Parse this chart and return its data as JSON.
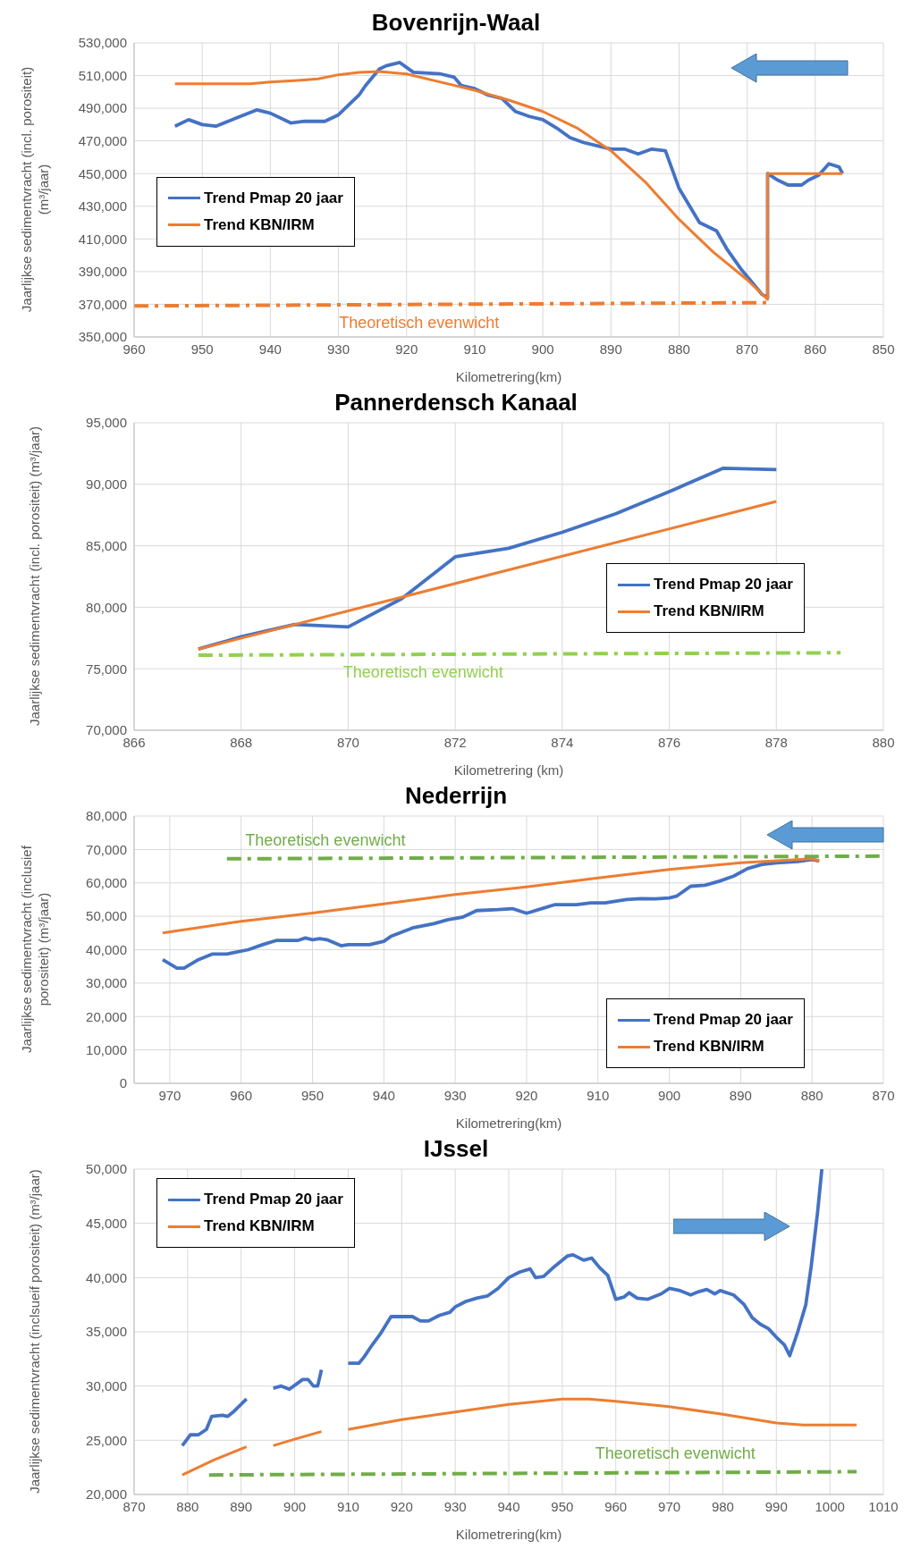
{
  "chart_data": [
    {
      "type": "line",
      "title": "Bovenrijn-Waal",
      "xlabel": "Kilometrering(km)",
      "ylabel": "Jaarlijkse sedimentvracht (incl. porositeit) (m³/jaar)",
      "xlim": [
        960,
        850
      ],
      "xticks": [
        960,
        950,
        940,
        930,
        920,
        910,
        900,
        890,
        880,
        870,
        860,
        850
      ],
      "ylim": [
        350000,
        530000
      ],
      "yticks": [
        {
          "value": 350000,
          "label": "350,000"
        },
        {
          "value": 370000,
          "label": "370,000"
        },
        {
          "value": 390000,
          "label": "390,000"
        },
        {
          "value": 410000,
          "label": "410,000"
        },
        {
          "value": 430000,
          "label": "430,000"
        },
        {
          "value": 450000,
          "label": "450,000"
        },
        {
          "value": 470000,
          "label": "470,000"
        },
        {
          "value": 490000,
          "label": "490,000"
        },
        {
          "value": 510000,
          "label": "510,000"
        },
        {
          "value": 530000,
          "label": "530,000"
        }
      ],
      "grid": true,
      "legend": "left",
      "series": [
        {
          "name": "Trend Pmap 20 jaar",
          "color": "#4472c4",
          "x": [
            954,
            952,
            950,
            948,
            945,
            942,
            940,
            937,
            935,
            932,
            930,
            927,
            926,
            924,
            923,
            921,
            919,
            915,
            913,
            912,
            910,
            908,
            906,
            904,
            902,
            900,
            898,
            896,
            894,
            892,
            890,
            888,
            886,
            884,
            882,
            880,
            877,
            874.5,
            873,
            870.8,
            869,
            867.8,
            867,
            867,
            865.5,
            864,
            862,
            861,
            859.5,
            858,
            856.5,
            856
          ],
          "values": [
            479000,
            483000,
            480000,
            479000,
            484000,
            489000,
            487000,
            481000,
            482000,
            482000,
            486000,
            498000,
            504000,
            514000,
            516000,
            518000,
            512000,
            511000,
            509000,
            504000,
            502000,
            498000,
            496000,
            488000,
            485000,
            483000,
            478000,
            472000,
            469000,
            467000,
            465000,
            465000,
            462000,
            465000,
            464000,
            441000,
            420000,
            415000,
            404000,
            391000,
            382000,
            376000,
            374000,
            450000,
            446000,
            443000,
            443000,
            446000,
            449000,
            456000,
            454000,
            450000
          ]
        },
        {
          "name": "Trend KBN/IRM",
          "color": "#ed7d31",
          "x": [
            954,
            943,
            940,
            936,
            933,
            930,
            927,
            924,
            920,
            915,
            910,
            905,
            900,
            895,
            890,
            885,
            880,
            875,
            870,
            867,
            867,
            856
          ],
          "values": [
            505000,
            505000,
            506000,
            507000,
            508000,
            510500,
            512000,
            512500,
            511000,
            506000,
            501000,
            495000,
            488000,
            478000,
            464000,
            445000,
            422000,
            402000,
            385000,
            373000,
            450000,
            450000
          ]
        },
        {
          "color": "#ed7d31",
          "line_style": "dashed",
          "x": [
            960,
            867
          ],
          "values": [
            369000,
            371000
          ]
        }
      ],
      "annotations": [
        "Theoretisch evenwicht"
      ]
    },
    {
      "type": "line",
      "title": "Pannerdensch Kanaal",
      "xlabel": "Kilometrering (km)",
      "ylabel": "Jaarlijkse sedimentvracht (incl. porositeit)  (m³/jaar)",
      "xlim": [
        866,
        880
      ],
      "xticks": [
        866,
        868,
        870,
        872,
        874,
        876,
        878,
        880
      ],
      "ylim": [
        70000,
        95000
      ],
      "yticks": [
        {
          "value": 70000,
          "label": "70,000"
        },
        {
          "value": 75000,
          "label": "75,000"
        },
        {
          "value": 80000,
          "label": "80,000"
        },
        {
          "value": 85000,
          "label": "85,000"
        },
        {
          "value": 90000,
          "label": "90,000"
        },
        {
          "value": 95000,
          "label": "95,000"
        }
      ],
      "grid": true,
      "legend": "right",
      "series": [
        {
          "name": "Trend Pmap 20 jaar",
          "color": "#4472c4",
          "x": [
            867.2,
            868,
            869,
            870,
            871,
            872,
            873,
            874,
            875,
            876,
            877,
            878
          ],
          "values": [
            76600,
            77600,
            78600,
            78400,
            80700,
            84100,
            84800,
            86100,
            87600,
            89400,
            91300,
            91200
          ]
        },
        {
          "name": "Trend KBN/IRM",
          "color": "#ed7d31",
          "x": [
            867.2,
            878
          ],
          "values": [
            76600,
            88600
          ]
        },
        {
          "color": "#92d050",
          "line_style": "dashed",
          "x": [
            867.2,
            879.2
          ],
          "values": [
            76100,
            76300
          ]
        }
      ],
      "annotations": [
        "Theoretisch evenwicht"
      ]
    },
    {
      "type": "line",
      "title": "Nederrijn",
      "xlabel": "Kilometrering(km)",
      "ylabel": "Jaarlijkse sedimentvracht (inclusief porositeit) (m³/jaar)",
      "xlim": [
        975,
        870
      ],
      "xticks": [
        970,
        960,
        950,
        940,
        930,
        920,
        910,
        900,
        890,
        880,
        870
      ],
      "ylim": [
        0,
        80000
      ],
      "yticks": [
        0,
        {
          "value": 10000,
          "label": "10,000"
        },
        {
          "value": 20000,
          "label": "20,000"
        },
        {
          "value": 30000,
          "label": "30,000"
        },
        {
          "value": 40000,
          "label": "40,000"
        },
        {
          "value": 50000,
          "label": "50,000"
        },
        {
          "value": 60000,
          "label": "60,000"
        },
        {
          "value": 70000,
          "label": "70,000"
        },
        {
          "value": 80000,
          "label": "80,000"
        }
      ],
      "grid": true,
      "legend": "bottom right",
      "series": [
        {
          "name": "Trend Pmap 20 jaar",
          "color": "#4472c4",
          "x": [
            971,
            969,
            968,
            966,
            964,
            962,
            959,
            957,
            955,
            952,
            951,
            950,
            949,
            948,
            946,
            945,
            942,
            940,
            939,
            936,
            933,
            931,
            929,
            927,
            924,
            922,
            920,
            918,
            916,
            913,
            911,
            909,
            906,
            904,
            902,
            900,
            899,
            897,
            895,
            893,
            891,
            889,
            887,
            885,
            882,
            880,
            879
          ],
          "values": [
            37000,
            34500,
            34500,
            37000,
            38700,
            38700,
            40000,
            41500,
            42800,
            42800,
            43500,
            43000,
            43300,
            43000,
            41200,
            41500,
            41500,
            42500,
            44000,
            46500,
            47800,
            49000,
            49700,
            51700,
            52000,
            52300,
            50900,
            52200,
            53500,
            53500,
            54000,
            54000,
            55000,
            55300,
            55200,
            55500,
            56000,
            59000,
            59300,
            60500,
            62000,
            64300,
            65500,
            66000,
            66400,
            67000,
            66500
          ]
        },
        {
          "name": "Trend KBN/IRM",
          "color": "#ed7d31",
          "x": [
            971,
            960,
            950,
            940,
            930,
            920,
            910,
            900,
            890,
            880,
            879
          ],
          "values": [
            45000,
            48500,
            51000,
            53700,
            56500,
            58800,
            61500,
            64000,
            66000,
            67200,
            66500
          ]
        },
        {
          "color": "#70ad47",
          "line_style": "dashed",
          "x": [
            962,
            870
          ],
          "values": [
            67200,
            68000
          ]
        }
      ],
      "annotations": [
        "Theoretisch evenwicht"
      ]
    },
    {
      "type": "line",
      "title": "IJssel",
      "xlabel": "Kilometrering(km)",
      "ylabel": "Jaarlijkse sedimentvracht (inclsueif porositeit) (m³/jaar)",
      "xlim": [
        870,
        1010
      ],
      "xticks": [
        870,
        880,
        890,
        900,
        910,
        920,
        930,
        940,
        950,
        960,
        970,
        980,
        990,
        1000,
        1010
      ],
      "ylim": [
        20000,
        50000
      ],
      "yticks": [
        {
          "value": 20000,
          "label": "20,000"
        },
        {
          "value": 25000,
          "label": "25,000"
        },
        {
          "value": 30000,
          "label": "30,000"
        },
        {
          "value": 35000,
          "label": "35,000"
        },
        {
          "value": 40000,
          "label": "40,000"
        },
        {
          "value": 45000,
          "label": "45,000"
        },
        {
          "value": 50000,
          "label": "50,000"
        }
      ],
      "grid": true,
      "legend": "top left",
      "series": [
        {
          "name": "Trend Pmap 20 jaar",
          "color": "#4472c4",
          "x": [
            879,
            880.5,
            882,
            883.5,
            884.5,
            886.5,
            887.5,
            888.5,
            891,
            893,
            896,
            897.5,
            899,
            901.5,
            902.5,
            903.5,
            904.3,
            905,
            907,
            910,
            912,
            913,
            914.5,
            916,
            918,
            922,
            923.5,
            925,
            927,
            929,
            930,
            932,
            934,
            936,
            938,
            940,
            942,
            944,
            945,
            946.5,
            948.5,
            951,
            952,
            954,
            955.5,
            957,
            958.5,
            960,
            961.5,
            962.5,
            964,
            966,
            968.5,
            970,
            972,
            974,
            975.5,
            977,
            978.5,
            979.5,
            982,
            984,
            985.5,
            987,
            988.5,
            990,
            991.5,
            992.5,
            994,
            995.5,
            996.5,
            997.7,
            998.5
          ],
          "values": [
            24500,
            25500,
            25500,
            26000,
            27200,
            27300,
            27200,
            27600,
            28800,
            null,
            29800,
            30000,
            29700,
            30600,
            30600,
            30000,
            30000,
            31500,
            null,
            32100,
            32100,
            32700,
            33800,
            34800,
            36400,
            36400,
            36000,
            36000,
            36500,
            36800,
            37300,
            37800,
            38100,
            38300,
            39000,
            40000,
            40500,
            40800,
            40000,
            40100,
            41000,
            42000,
            42100,
            41600,
            41800,
            40900,
            40200,
            38000,
            38200,
            38600,
            38100,
            38000,
            38500,
            39000,
            38800,
            38400,
            38700,
            38900,
            38500,
            38800,
            38400,
            37500,
            36300,
            35700,
            35300,
            34500,
            33800,
            32800,
            35000,
            37500,
            41000,
            46000,
            50000
          ]
        },
        {
          "name": "Trend KBN/IRM",
          "color": "#ed7d31",
          "x": [
            879,
            885,
            891,
            893,
            896,
            900,
            905,
            907,
            910,
            920,
            930,
            940,
            950,
            955,
            960,
            970,
            980,
            990,
            995,
            1005
          ],
          "values": [
            21800,
            23200,
            24400,
            null,
            24500,
            25100,
            25800,
            null,
            26000,
            26900,
            27600,
            28300,
            28800,
            28800,
            28600,
            28100,
            27400,
            26600,
            26400,
            26400
          ]
        },
        {
          "color": "#70ad47",
          "line_style": "dashed",
          "x": [
            884,
            1005
          ],
          "values": [
            21800,
            22100
          ]
        }
      ],
      "annotations": [
        "Theoretisch evenwicht"
      ]
    }
  ]
}
